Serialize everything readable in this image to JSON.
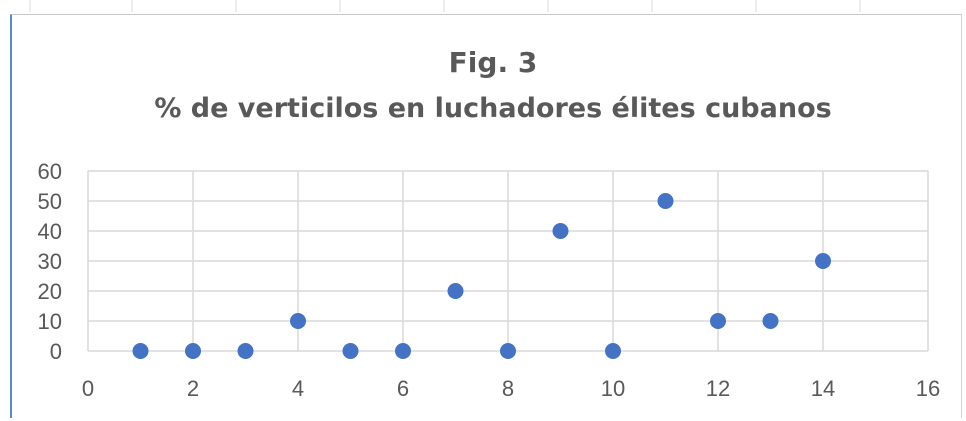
{
  "chart_data": {
    "type": "scatter",
    "title": "Fig. 3",
    "subtitle": "% de verticilos en luchadores élites cubanos",
    "xlim": [
      0,
      16
    ],
    "ylim": [
      0,
      60
    ],
    "x_ticks": [
      "0",
      "2",
      "4",
      "6",
      "8",
      "10",
      "12",
      "14",
      "16"
    ],
    "y_ticks": [
      "0",
      "10",
      "20",
      "30",
      "40",
      "50",
      "60"
    ],
    "grid": true,
    "legend": "none",
    "marker_color": "#4472c4",
    "points": [
      {
        "x": 1,
        "y": 0
      },
      {
        "x": 2,
        "y": 0
      },
      {
        "x": 3,
        "y": 0
      },
      {
        "x": 4,
        "y": 10
      },
      {
        "x": 5,
        "y": 0
      },
      {
        "x": 6,
        "y": 0
      },
      {
        "x": 7,
        "y": 20
      },
      {
        "x": 8,
        "y": 0
      },
      {
        "x": 9,
        "y": 40
      },
      {
        "x": 10,
        "y": 0
      },
      {
        "x": 11,
        "y": 50
      },
      {
        "x": 12,
        "y": 10
      },
      {
        "x": 13,
        "y": 10
      },
      {
        "x": 14,
        "y": 30
      }
    ]
  }
}
